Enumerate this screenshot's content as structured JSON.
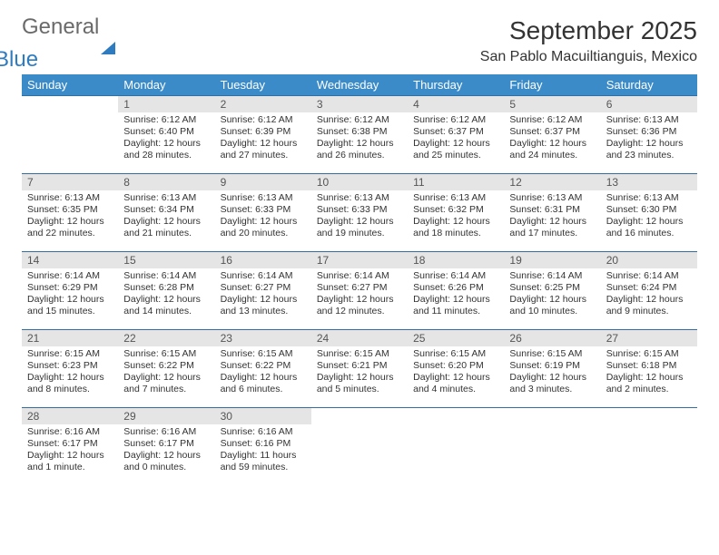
{
  "logo": {
    "text1": "General",
    "text2": "Blue"
  },
  "title": "September 2025",
  "subtitle": "San Pablo Macuiltianguis, Mexico",
  "colors": {
    "header_bg": "#3b8bc9",
    "header_text": "#ffffff",
    "daynum_bg": "#e5e5e5",
    "row_border": "#2f6fa3",
    "logo_grey": "#6a6a6a",
    "logo_blue": "#2f7bbf"
  },
  "weekdays": [
    "Sunday",
    "Monday",
    "Tuesday",
    "Wednesday",
    "Thursday",
    "Friday",
    "Saturday"
  ],
  "weeks": [
    [
      null,
      {
        "n": "1",
        "sr": "Sunrise: 6:12 AM",
        "ss": "Sunset: 6:40 PM",
        "dl": "Daylight: 12 hours and 28 minutes."
      },
      {
        "n": "2",
        "sr": "Sunrise: 6:12 AM",
        "ss": "Sunset: 6:39 PM",
        "dl": "Daylight: 12 hours and 27 minutes."
      },
      {
        "n": "3",
        "sr": "Sunrise: 6:12 AM",
        "ss": "Sunset: 6:38 PM",
        "dl": "Daylight: 12 hours and 26 minutes."
      },
      {
        "n": "4",
        "sr": "Sunrise: 6:12 AM",
        "ss": "Sunset: 6:37 PM",
        "dl": "Daylight: 12 hours and 25 minutes."
      },
      {
        "n": "5",
        "sr": "Sunrise: 6:12 AM",
        "ss": "Sunset: 6:37 PM",
        "dl": "Daylight: 12 hours and 24 minutes."
      },
      {
        "n": "6",
        "sr": "Sunrise: 6:13 AM",
        "ss": "Sunset: 6:36 PM",
        "dl": "Daylight: 12 hours and 23 minutes."
      }
    ],
    [
      {
        "n": "7",
        "sr": "Sunrise: 6:13 AM",
        "ss": "Sunset: 6:35 PM",
        "dl": "Daylight: 12 hours and 22 minutes."
      },
      {
        "n": "8",
        "sr": "Sunrise: 6:13 AM",
        "ss": "Sunset: 6:34 PM",
        "dl": "Daylight: 12 hours and 21 minutes."
      },
      {
        "n": "9",
        "sr": "Sunrise: 6:13 AM",
        "ss": "Sunset: 6:33 PM",
        "dl": "Daylight: 12 hours and 20 minutes."
      },
      {
        "n": "10",
        "sr": "Sunrise: 6:13 AM",
        "ss": "Sunset: 6:33 PM",
        "dl": "Daylight: 12 hours and 19 minutes."
      },
      {
        "n": "11",
        "sr": "Sunrise: 6:13 AM",
        "ss": "Sunset: 6:32 PM",
        "dl": "Daylight: 12 hours and 18 minutes."
      },
      {
        "n": "12",
        "sr": "Sunrise: 6:13 AM",
        "ss": "Sunset: 6:31 PM",
        "dl": "Daylight: 12 hours and 17 minutes."
      },
      {
        "n": "13",
        "sr": "Sunrise: 6:13 AM",
        "ss": "Sunset: 6:30 PM",
        "dl": "Daylight: 12 hours and 16 minutes."
      }
    ],
    [
      {
        "n": "14",
        "sr": "Sunrise: 6:14 AM",
        "ss": "Sunset: 6:29 PM",
        "dl": "Daylight: 12 hours and 15 minutes."
      },
      {
        "n": "15",
        "sr": "Sunrise: 6:14 AM",
        "ss": "Sunset: 6:28 PM",
        "dl": "Daylight: 12 hours and 14 minutes."
      },
      {
        "n": "16",
        "sr": "Sunrise: 6:14 AM",
        "ss": "Sunset: 6:27 PM",
        "dl": "Daylight: 12 hours and 13 minutes."
      },
      {
        "n": "17",
        "sr": "Sunrise: 6:14 AM",
        "ss": "Sunset: 6:27 PM",
        "dl": "Daylight: 12 hours and 12 minutes."
      },
      {
        "n": "18",
        "sr": "Sunrise: 6:14 AM",
        "ss": "Sunset: 6:26 PM",
        "dl": "Daylight: 12 hours and 11 minutes."
      },
      {
        "n": "19",
        "sr": "Sunrise: 6:14 AM",
        "ss": "Sunset: 6:25 PM",
        "dl": "Daylight: 12 hours and 10 minutes."
      },
      {
        "n": "20",
        "sr": "Sunrise: 6:14 AM",
        "ss": "Sunset: 6:24 PM",
        "dl": "Daylight: 12 hours and 9 minutes."
      }
    ],
    [
      {
        "n": "21",
        "sr": "Sunrise: 6:15 AM",
        "ss": "Sunset: 6:23 PM",
        "dl": "Daylight: 12 hours and 8 minutes."
      },
      {
        "n": "22",
        "sr": "Sunrise: 6:15 AM",
        "ss": "Sunset: 6:22 PM",
        "dl": "Daylight: 12 hours and 7 minutes."
      },
      {
        "n": "23",
        "sr": "Sunrise: 6:15 AM",
        "ss": "Sunset: 6:22 PM",
        "dl": "Daylight: 12 hours and 6 minutes."
      },
      {
        "n": "24",
        "sr": "Sunrise: 6:15 AM",
        "ss": "Sunset: 6:21 PM",
        "dl": "Daylight: 12 hours and 5 minutes."
      },
      {
        "n": "25",
        "sr": "Sunrise: 6:15 AM",
        "ss": "Sunset: 6:20 PM",
        "dl": "Daylight: 12 hours and 4 minutes."
      },
      {
        "n": "26",
        "sr": "Sunrise: 6:15 AM",
        "ss": "Sunset: 6:19 PM",
        "dl": "Daylight: 12 hours and 3 minutes."
      },
      {
        "n": "27",
        "sr": "Sunrise: 6:15 AM",
        "ss": "Sunset: 6:18 PM",
        "dl": "Daylight: 12 hours and 2 minutes."
      }
    ],
    [
      {
        "n": "28",
        "sr": "Sunrise: 6:16 AM",
        "ss": "Sunset: 6:17 PM",
        "dl": "Daylight: 12 hours and 1 minute."
      },
      {
        "n": "29",
        "sr": "Sunrise: 6:16 AM",
        "ss": "Sunset: 6:17 PM",
        "dl": "Daylight: 12 hours and 0 minutes."
      },
      {
        "n": "30",
        "sr": "Sunrise: 6:16 AM",
        "ss": "Sunset: 6:16 PM",
        "dl": "Daylight: 11 hours and 59 minutes."
      },
      null,
      null,
      null,
      null
    ]
  ]
}
